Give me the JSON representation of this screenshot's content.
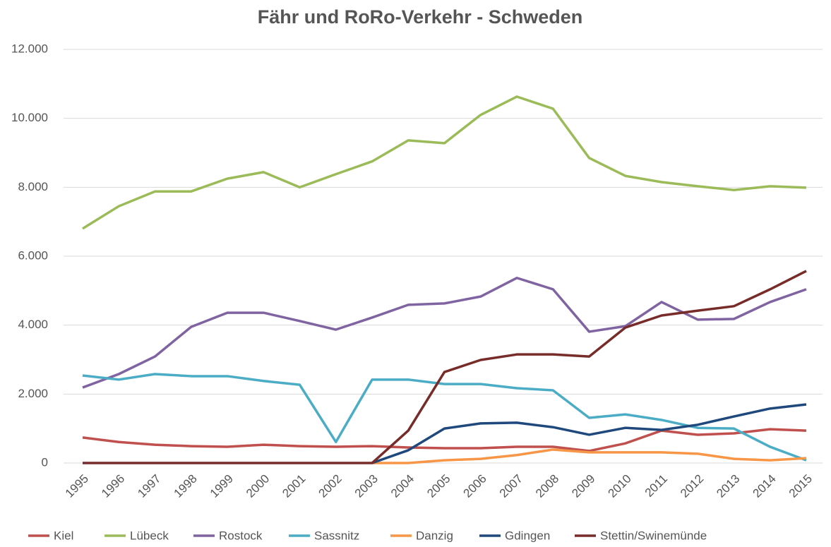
{
  "chart_data": {
    "type": "line",
    "title": "Fähr und RoRo-Verkehr - Schweden",
    "categories": [
      "1995",
      "1996",
      "1997",
      "1998",
      "1999",
      "2000",
      "2001",
      "2002",
      "2003",
      "2004",
      "2005",
      "2006",
      "2007",
      "2008",
      "2009",
      "2010",
      "2011",
      "2012",
      "2013",
      "2014",
      "2015"
    ],
    "series": [
      {
        "name": "Kiel",
        "color": "#c0504d",
        "values": [
          740,
          610,
          530,
          490,
          470,
          530,
          490,
          470,
          490,
          450,
          430,
          430,
          470,
          470,
          350,
          570,
          940,
          820,
          860,
          980,
          940
        ]
      },
      {
        "name": "Lübeck",
        "color": "#9bbb59",
        "values": [
          6800,
          7450,
          7880,
          7880,
          8250,
          8440,
          8000,
          8380,
          8750,
          9360,
          9280,
          10100,
          10630,
          10280,
          8850,
          8330,
          8150,
          8030,
          7920,
          8030,
          7990
        ]
      },
      {
        "name": "Rostock",
        "color": "#8064a2",
        "values": [
          2190,
          2580,
          3090,
          3950,
          4360,
          4360,
          4120,
          3870,
          4220,
          4590,
          4630,
          4830,
          5370,
          5040,
          3810,
          3970,
          4670,
          4160,
          4180,
          4670,
          5040
        ]
      },
      {
        "name": "Sassnitz",
        "color": "#4bacc6",
        "values": [
          2540,
          2420,
          2580,
          2520,
          2520,
          2380,
          2270,
          610,
          2420,
          2420,
          2290,
          2290,
          2170,
          2110,
          1310,
          1410,
          1250,
          1020,
          1000,
          470,
          80
        ]
      },
      {
        "name": "Danzig",
        "color": "#f79646",
        "values": [
          null,
          null,
          null,
          null,
          null,
          null,
          null,
          null,
          0,
          0,
          80,
          120,
          230,
          390,
          310,
          310,
          310,
          270,
          120,
          80,
          140
        ]
      },
      {
        "name": "Gdingen",
        "color": "#1f497d",
        "values": [
          null,
          null,
          null,
          null,
          null,
          null,
          null,
          null,
          0,
          370,
          1000,
          1150,
          1170,
          1040,
          820,
          1020,
          960,
          1110,
          1350,
          1580,
          1700
        ]
      },
      {
        "name": "Stettin/Swinemünde",
        "color": "#772c2a",
        "values": [
          0,
          0,
          0,
          0,
          0,
          0,
          0,
          0,
          0,
          940,
          2640,
          2990,
          3150,
          3150,
          3090,
          3930,
          4280,
          4420,
          4550,
          5040,
          5570
        ]
      }
    ],
    "ylim": [
      0,
      12000
    ],
    "yticks": [
      0,
      {
        "value": 2000,
        "label": "2.000"
      },
      {
        "value": 4000,
        "label": "4.000"
      },
      {
        "value": 6000,
        "label": "6.000"
      },
      {
        "value": 8000,
        "label": "8.000"
      },
      {
        "value": 10000,
        "label": "10.000"
      },
      {
        "value": 12000,
        "label": "12.000"
      }
    ],
    "grid": true,
    "legend": "bottom"
  }
}
